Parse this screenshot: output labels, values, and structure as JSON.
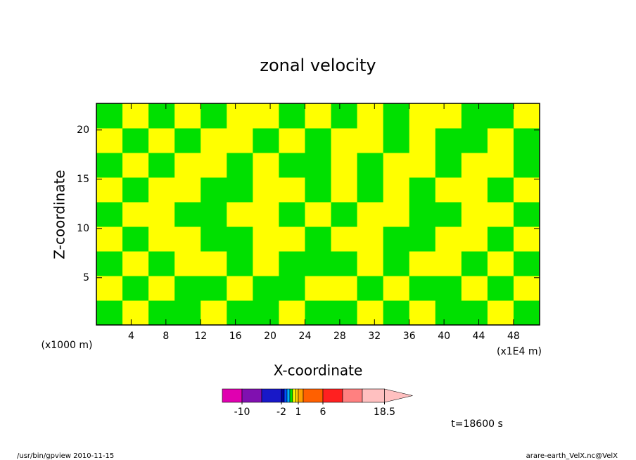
{
  "chart_data": {
    "type": "contour",
    "title": "zonal velocity",
    "xlabel": "X-coordinate",
    "ylabel": "Z-coordinate",
    "xunit": "(x1E4 m)",
    "yunit": "(x1000 m)",
    "annotation": "t=18600 s",
    "footer_left": "/usr/bin/gpview  2010-11-15",
    "footer_right": "arare-earth_VelX.nc@VelX",
    "xlim": [
      0,
      51
    ],
    "ylim": [
      0.2,
      22.7
    ],
    "xticks": [
      4,
      8,
      12,
      16,
      20,
      24,
      28,
      32,
      36,
      40,
      44,
      48
    ],
    "yticks": [
      5,
      10,
      15,
      20
    ],
    "x_edges": [
      0,
      3,
      6,
      9,
      12,
      15,
      18,
      21,
      24,
      27,
      30,
      33,
      36,
      39,
      42,
      45,
      48,
      51
    ],
    "z_edges": [
      0.2,
      2.7,
      5.2,
      7.7,
      10.2,
      12.7,
      15.2,
      17.7,
      20.2,
      22.7
    ],
    "z_values": [
      [
        -0.3,
        0.3,
        -0.3,
        -0.3,
        0.3,
        -0.3,
        -0.3,
        0.3,
        -0.3,
        -0.3,
        0.3,
        -0.3,
        0.3,
        -0.3,
        -0.3,
        0.3,
        -0.3
      ],
      [
        0.3,
        -0.3,
        0.3,
        -0.3,
        -0.3,
        0.3,
        -0.3,
        -0.3,
        0.3,
        0.3,
        -0.3,
        0.3,
        -0.3,
        -0.3,
        0.3,
        -0.3,
        0.3
      ],
      [
        -0.3,
        0.3,
        -0.3,
        0.3,
        0.3,
        -0.3,
        0.3,
        -0.3,
        -0.3,
        -0.3,
        0.3,
        -0.3,
        0.3,
        0.3,
        -0.3,
        0.3,
        -0.3
      ],
      [
        0.3,
        -0.3,
        0.3,
        0.3,
        -0.3,
        -0.3,
        0.3,
        0.3,
        -0.3,
        0.3,
        0.3,
        -0.3,
        -0.3,
        0.3,
        0.3,
        -0.3,
        0.3
      ],
      [
        -0.3,
        0.3,
        0.3,
        -0.3,
        -0.3,
        0.3,
        0.3,
        -0.3,
        0.3,
        -0.3,
        0.3,
        0.3,
        -0.3,
        -0.3,
        0.3,
        0.3,
        -0.3
      ],
      [
        0.3,
        -0.3,
        0.3,
        0.3,
        -0.3,
        -0.3,
        0.3,
        0.3,
        -0.3,
        0.3,
        -0.3,
        0.3,
        -0.3,
        0.3,
        0.3,
        -0.3,
        0.3
      ],
      [
        -0.3,
        0.3,
        -0.3,
        0.3,
        0.3,
        -0.3,
        0.3,
        -0.3,
        -0.3,
        0.3,
        -0.3,
        0.3,
        0.3,
        -0.3,
        0.3,
        0.3,
        -0.3
      ],
      [
        0.3,
        -0.3,
        0.3,
        -0.3,
        0.3,
        0.3,
        -0.3,
        0.3,
        -0.3,
        0.3,
        0.3,
        -0.3,
        0.3,
        -0.3,
        -0.3,
        0.3,
        -0.3
      ],
      [
        -0.3,
        0.3,
        -0.3,
        0.3,
        -0.3,
        0.3,
        0.3,
        -0.3,
        0.3,
        -0.3,
        0.3,
        -0.3,
        0.3,
        0.3,
        -0.3,
        -0.3,
        0.3
      ]
    ],
    "colorbar": {
      "levels": [
        -14,
        -10,
        -6,
        -2,
        -1.5,
        -1,
        -0.5,
        0,
        0.5,
        1,
        2,
        6,
        10,
        14,
        18.5
      ],
      "colors": [
        "#e000b0",
        "#8010b0",
        "#1818c8",
        "#0000a0",
        "#0050ff",
        "#00b0ff",
        "#00e000",
        "#ffff00",
        "#ffd000",
        "#ffa000",
        "#ff6000",
        "#ff2020",
        "#ff8080",
        "#ffc0c0"
      ],
      "extend_color": "#ffc0c0",
      "ticks": [
        -10,
        -2,
        1,
        6,
        18.5
      ]
    }
  }
}
